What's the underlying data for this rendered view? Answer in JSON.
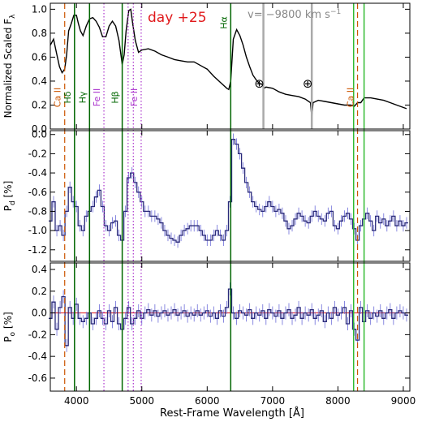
{
  "chart_data": {
    "type": "line",
    "xlabel": "Rest-Frame Wavelength [Å]",
    "xlim": [
      3600,
      9100
    ],
    "xticks": [
      4000,
      5000,
      6000,
      7000,
      8000,
      9000
    ],
    "annotation": {
      "epoch": "day +25",
      "velocity": "v= −9800 km s",
      "velocity_exp": "−1",
      "earth_symbol": "⊕"
    },
    "line_markers": [
      {
        "label": "Ca II",
        "wave": 3820,
        "color": "#cc5500",
        "style": "dashed"
      },
      {
        "label": "Hδ",
        "wave": 3970,
        "color": "#006600",
        "style": "solid"
      },
      {
        "label": "Hγ",
        "wave": 4200,
        "color": "#006600",
        "style": "solid"
      },
      {
        "label": "Fe II",
        "wave": 4420,
        "color": "#aa33cc",
        "style": "dotted"
      },
      {
        "label": "Hβ",
        "wave": 4700,
        "color": "#006600",
        "style": "solid"
      },
      {
        "label": "",
        "wave": 4790,
        "color": "#aa33cc",
        "style": "dotted"
      },
      {
        "label": "",
        "wave": 4870,
        "color": "#aa33cc",
        "style": "dotted"
      },
      {
        "label": "Fe II",
        "wave": 4990,
        "color": "#aa33cc",
        "style": "dotted"
      },
      {
        "label": "Hα",
        "wave": 6360,
        "color": "#006600",
        "style": "solid"
      },
      {
        "label": "",
        "wave": 8240,
        "color": "#33bb33",
        "style": "solid"
      },
      {
        "label": "Ca II",
        "wave": 8300,
        "color": "#cc5500",
        "style": "dashed"
      },
      {
        "label": "",
        "wave": 8400,
        "color": "#33bb33",
        "style": "solid"
      }
    ],
    "telluric": [
      6860,
      7600
    ],
    "panels": [
      {
        "id": "flux",
        "ylabel": "Normalized Scaled F",
        "ylabel_sub": "λ",
        "ylim": [
          0.0,
          1.05
        ],
        "yticks": [
          "0.0",
          "0.2",
          "0.4",
          "0.6",
          "0.8",
          "1.0"
        ],
        "ytick_values": [
          0.0,
          0.2,
          0.4,
          0.6,
          0.8,
          1.0
        ],
        "series": [
          {
            "name": "",
            "x": [
              3600,
              3650,
              3700,
              3740,
              3780,
              3820,
              3850,
              3880,
              3920,
              3960,
              4000,
              4030,
              4060,
              4100,
              4150,
              4200,
              4250,
              4300,
              4350,
              4400,
              4450,
              4500,
              4550,
              4600,
              4650,
              4700,
              4730,
              4760,
              4800,
              4830,
              4860,
              4900,
              4950,
              5000,
              5100,
              5200,
              5300,
              5400,
              5500,
              5600,
              5700,
              5800,
              5900,
              6000,
              6100,
              6200,
              6300,
              6330,
              6360,
              6400,
              6450,
              6500,
              6550,
              6600,
              6650,
              6700,
              6750,
              6800,
              6850,
              6870,
              6900,
              7000,
              7100,
              7200,
              7300,
              7400,
              7500,
              7580,
              7600,
              7620,
              7700,
              7800,
              7900,
              8000,
              8100,
              8200,
              8250,
              8300,
              8350,
              8400,
              8500,
              8600,
              8700,
              8800,
              8900,
              9000,
              9050
            ],
            "y": [
              0.7,
              0.75,
              0.62,
              0.52,
              0.47,
              0.5,
              0.62,
              0.82,
              0.88,
              0.95,
              0.95,
              0.88,
              0.82,
              0.78,
              0.86,
              0.92,
              0.93,
              0.9,
              0.85,
              0.77,
              0.77,
              0.86,
              0.9,
              0.86,
              0.74,
              0.54,
              0.62,
              0.82,
              0.99,
              1.0,
              0.88,
              0.74,
              0.64,
              0.66,
              0.67,
              0.65,
              0.62,
              0.6,
              0.58,
              0.57,
              0.56,
              0.56,
              0.53,
              0.5,
              0.44,
              0.39,
              0.34,
              0.33,
              0.4,
              0.75,
              0.83,
              0.78,
              0.7,
              0.6,
              0.52,
              0.45,
              0.41,
              0.38,
              0.37,
              0.34,
              0.35,
              0.34,
              0.31,
              0.29,
              0.28,
              0.27,
              0.25,
              0.22,
              0.1,
              0.22,
              0.24,
              0.23,
              0.22,
              0.21,
              0.2,
              0.2,
              0.19,
              0.22,
              0.22,
              0.26,
              0.26,
              0.25,
              0.24,
              0.22,
              0.2,
              0.18,
              0.17
            ]
          }
        ]
      },
      {
        "id": "pd",
        "ylabel": "P",
        "ylabel_sub": "d",
        "ylabel_unit": " [%]",
        "ylim": [
          -1.32,
          0.04
        ],
        "yticks": [
          "0.0",
          "-0.2",
          "-0.4",
          "-0.6",
          "-0.8",
          "-1.0",
          "-1.2"
        ],
        "ytick_values": [
          0.0,
          -0.2,
          -0.4,
          -0.6,
          -0.8,
          -1.0,
          -1.2
        ],
        "series": [
          {
            "name": "",
            "x": [
              3600,
              3650,
              3700,
              3750,
              3800,
              3850,
              3900,
              3950,
              4000,
              4050,
              4100,
              4150,
              4200,
              4250,
              4300,
              4350,
              4400,
              4450,
              4500,
              4550,
              4600,
              4650,
              4700,
              4750,
              4800,
              4850,
              4900,
              4950,
              5000,
              5050,
              5100,
              5150,
              5200,
              5250,
              5300,
              5350,
              5400,
              5450,
              5500,
              5550,
              5600,
              5650,
              5700,
              5750,
              5800,
              5850,
              5900,
              5950,
              6000,
              6050,
              6100,
              6150,
              6200,
              6250,
              6300,
              6350,
              6400,
              6450,
              6500,
              6550,
              6600,
              6650,
              6700,
              6750,
              6800,
              6850,
              6900,
              6950,
              7000,
              7050,
              7100,
              7150,
              7200,
              7250,
              7300,
              7350,
              7400,
              7450,
              7500,
              7550,
              7600,
              7650,
              7700,
              7750,
              7800,
              7850,
              7900,
              7950,
              8000,
              8050,
              8100,
              8150,
              8200,
              8250,
              8300,
              8350,
              8400,
              8450,
              8500,
              8550,
              8600,
              8650,
              8700,
              8750,
              8800,
              8850,
              8900,
              8950,
              9000,
              9050
            ],
            "y": [
              -0.9,
              -0.7,
              -1.0,
              -0.95,
              -1.05,
              -0.8,
              -0.55,
              -0.7,
              -0.75,
              -0.95,
              -1.0,
              -0.85,
              -0.8,
              -0.75,
              -0.65,
              -0.58,
              -0.75,
              -0.95,
              -1.0,
              -0.92,
              -0.9,
              -1.05,
              -1.1,
              -0.8,
              -0.45,
              -0.4,
              -0.5,
              -0.6,
              -0.7,
              -0.8,
              -0.8,
              -0.85,
              -0.85,
              -0.88,
              -0.92,
              -1.0,
              -1.05,
              -1.08,
              -1.1,
              -1.12,
              -1.05,
              -1.0,
              -0.98,
              -0.95,
              -0.95,
              -0.95,
              -1.0,
              -1.05,
              -1.1,
              -1.1,
              -1.05,
              -1.0,
              -1.05,
              -1.1,
              -1.0,
              -0.7,
              -0.05,
              -0.1,
              -0.2,
              -0.35,
              -0.5,
              -0.6,
              -0.7,
              -0.75,
              -0.78,
              -0.8,
              -0.75,
              -0.7,
              -0.75,
              -0.8,
              -0.78,
              -0.82,
              -0.9,
              -0.98,
              -0.95,
              -0.88,
              -0.82,
              -0.85,
              -0.9,
              -0.92,
              -0.85,
              -0.8,
              -0.85,
              -0.88,
              -0.9,
              -0.82,
              -0.8,
              -0.95,
              -0.98,
              -0.9,
              -0.85,
              -0.82,
              -0.88,
              -0.98,
              -1.1,
              -0.95,
              -0.88,
              -0.82,
              -0.9,
              -1.0,
              -0.85,
              -0.92,
              -0.88,
              -0.95,
              -0.9,
              -0.85,
              -0.95,
              -0.9,
              -0.95,
              -0.92
            ]
          }
        ]
      },
      {
        "id": "po",
        "ylabel": "P",
        "ylabel_sub": "o",
        "ylabel_unit": " [%]",
        "ylim": [
          -0.72,
          0.46
        ],
        "yticks": [
          "0.4",
          "0.2",
          "0.0",
          "-0.2",
          "-0.4",
          "-0.6"
        ],
        "ytick_values": [
          0.4,
          0.2,
          0.0,
          -0.2,
          -0.4,
          -0.6
        ],
        "series": [
          {
            "name": "",
            "x": [
              3600,
              3650,
              3700,
              3750,
              3800,
              3850,
              3900,
              3950,
              4000,
              4050,
              4100,
              4150,
              4200,
              4250,
              4300,
              4350,
              4400,
              4450,
              4500,
              4550,
              4600,
              4650,
              4700,
              4750,
              4800,
              4850,
              4900,
              4950,
              5000,
              5050,
              5100,
              5150,
              5200,
              5250,
              5300,
              5350,
              5400,
              5450,
              5500,
              5550,
              5600,
              5650,
              5700,
              5750,
              5800,
              5850,
              5900,
              5950,
              6000,
              6050,
              6100,
              6150,
              6200,
              6250,
              6300,
              6350,
              6400,
              6450,
              6500,
              6550,
              6600,
              6650,
              6700,
              6750,
              6800,
              6850,
              6900,
              6950,
              7000,
              7050,
              7100,
              7150,
              7200,
              7250,
              7300,
              7350,
              7400,
              7450,
              7500,
              7550,
              7600,
              7650,
              7700,
              7750,
              7800,
              7850,
              7900,
              7950,
              8000,
              8050,
              8100,
              8150,
              8200,
              8250,
              8300,
              8350,
              8400,
              8450,
              8500,
              8550,
              8600,
              8650,
              8700,
              8750,
              8800,
              8850,
              8900,
              8950,
              9000,
              9050
            ],
            "y": [
              -0.05,
              0.1,
              -0.15,
              0.05,
              0.15,
              -0.3,
              0.05,
              -0.05,
              0.08,
              -0.05,
              -0.08,
              -0.05,
              0.0,
              -0.1,
              -0.05,
              0.02,
              -0.05,
              -0.1,
              0.02,
              -0.08,
              0.05,
              -0.1,
              -0.15,
              -0.05,
              0.05,
              -0.1,
              -0.05,
              0.02,
              -0.05,
              0.0,
              0.03,
              -0.02,
              0.02,
              -0.03,
              0.0,
              0.02,
              -0.02,
              0.0,
              0.03,
              -0.02,
              0.0,
              0.02,
              -0.03,
              0.0,
              -0.02,
              0.02,
              -0.02,
              0.0,
              0.02,
              -0.03,
              0.0,
              -0.05,
              0.02,
              -0.03,
              0.05,
              0.22,
              0.0,
              -0.05,
              0.02,
              0.0,
              -0.02,
              0.03,
              -0.05,
              0.0,
              -0.02,
              0.02,
              -0.05,
              0.03,
              0.0,
              -0.03,
              0.02,
              -0.05,
              0.0,
              0.03,
              -0.05,
              -0.02,
              0.05,
              -0.05,
              0.0,
              -0.02,
              0.03,
              -0.05,
              -0.02,
              0.02,
              -0.08,
              0.0,
              -0.05,
              0.05,
              -0.02,
              0.0,
              0.05,
              -0.1,
              0.02,
              -0.15,
              -0.25,
              0.05,
              -0.08,
              0.02,
              -0.05,
              0.0,
              -0.03,
              0.02,
              -0.05,
              0.0,
              0.03,
              -0.05,
              0.0,
              0.02,
              0.0,
              -0.02
            ]
          }
        ]
      }
    ]
  }
}
